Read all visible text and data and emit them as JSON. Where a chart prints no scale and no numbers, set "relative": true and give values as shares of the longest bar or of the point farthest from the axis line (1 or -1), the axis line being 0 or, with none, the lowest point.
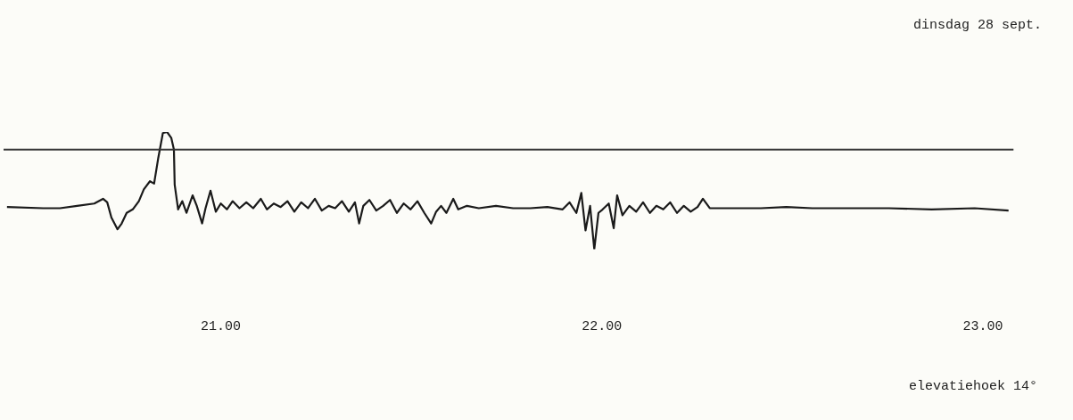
{
  "chart_data": {
    "type": "line",
    "title": "dinsdag 28 sept.",
    "annotations": [
      "elevatiehoek 14°"
    ],
    "relative": true,
    "color": "#1a1a1a",
    "marker": "none",
    "grid": false,
    "legend": false,
    "tick_labels": "x",
    "xlim": [
      20.43,
      23.08
    ],
    "xticks": [
      {
        "value": 21,
        "label": "21.00"
      },
      {
        "value": 22,
        "label": "22.00"
      },
      {
        "value": 23,
        "label": "23.00"
      }
    ],
    "ref_lines": [
      {
        "axis": "y",
        "value": 0.85,
        "color": "#333333"
      }
    ],
    "x": [
      20.439,
      20.534,
      20.578,
      20.623,
      20.668,
      20.691,
      20.702,
      20.713,
      20.729,
      20.74,
      20.753,
      20.769,
      20.785,
      20.798,
      20.814,
      20.825,
      20.836,
      20.848,
      20.859,
      20.87,
      20.877,
      20.879,
      20.888,
      20.899,
      20.91,
      20.926,
      20.937,
      20.951,
      20.96,
      20.973,
      20.987,
      21.0,
      21.016,
      21.031,
      21.049,
      21.067,
      21.085,
      21.105,
      21.121,
      21.139,
      21.157,
      21.175,
      21.193,
      21.211,
      21.229,
      21.247,
      21.265,
      21.283,
      21.3,
      21.318,
      21.336,
      21.352,
      21.363,
      21.374,
      21.39,
      21.408,
      21.426,
      21.444,
      21.462,
      21.48,
      21.498,
      21.516,
      21.534,
      21.552,
      21.565,
      21.578,
      21.592,
      21.61,
      21.623,
      21.646,
      21.677,
      21.722,
      21.767,
      21.812,
      21.857,
      21.897,
      21.915,
      21.933,
      21.946,
      21.957,
      21.969,
      21.98,
      21.991,
      22.002,
      22.018,
      22.031,
      22.04,
      22.054,
      22.072,
      22.09,
      22.108,
      22.126,
      22.143,
      22.161,
      22.179,
      22.197,
      22.215,
      22.233,
      22.251,
      22.265,
      22.283,
      22.35,
      22.417,
      22.484,
      22.552,
      22.641,
      22.753,
      22.865,
      22.978,
      23.067
    ],
    "values": [
      0.36,
      0.35,
      0.35,
      0.37,
      0.39,
      0.43,
      0.4,
      0.27,
      0.17,
      0.22,
      0.31,
      0.34,
      0.41,
      0.51,
      0.58,
      0.56,
      0.78,
      0.99,
      1,
      0.95,
      0.85,
      0.55,
      0.34,
      0.41,
      0.31,
      0.46,
      0.37,
      0.22,
      0.35,
      0.5,
      0.32,
      0.39,
      0.34,
      0.41,
      0.35,
      0.4,
      0.35,
      0.43,
      0.34,
      0.39,
      0.36,
      0.41,
      0.32,
      0.4,
      0.35,
      0.43,
      0.33,
      0.37,
      0.35,
      0.41,
      0.32,
      0.4,
      0.22,
      0.37,
      0.42,
      0.33,
      0.37,
      0.42,
      0.31,
      0.39,
      0.34,
      0.41,
      0.31,
      0.22,
      0.32,
      0.37,
      0.31,
      0.43,
      0.34,
      0.37,
      0.35,
      0.37,
      0.35,
      0.35,
      0.36,
      0.34,
      0.4,
      0.31,
      0.48,
      0.16,
      0.37,
      0,
      0.31,
      0.34,
      0.39,
      0.18,
      0.46,
      0.29,
      0.37,
      0.32,
      0.4,
      0.31,
      0.37,
      0.34,
      0.4,
      0.31,
      0.37,
      0.32,
      0.36,
      0.43,
      0.35,
      0.35,
      0.35,
      0.36,
      0.35,
      0.35,
      0.35,
      0.34,
      0.35,
      0.33
    ]
  }
}
